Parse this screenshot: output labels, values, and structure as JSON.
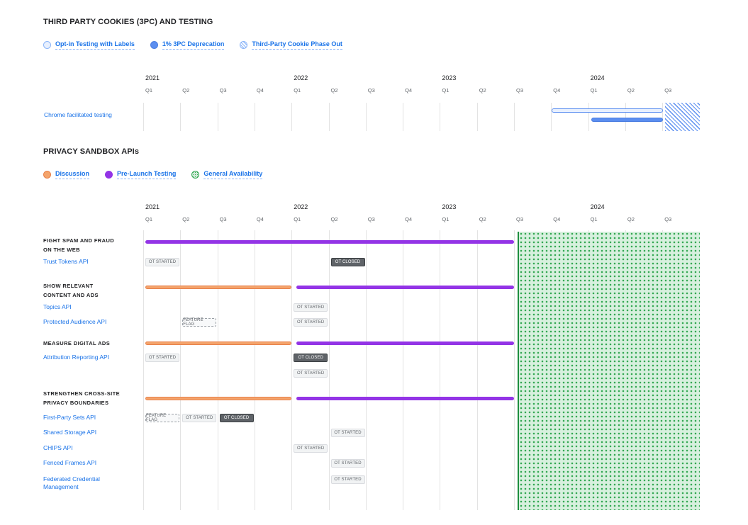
{
  "section1": {
    "title": "THIRD PARTY COOKIES (3PC) AND TESTING",
    "legend": [
      {
        "label": "Opt-in Testing with Labels",
        "color": "#d2e3fc",
        "style": "outline"
      },
      {
        "label": "1% 3PC Deprecation",
        "color": "#5b8ef0",
        "style": "solid"
      },
      {
        "label": "Third-Party Cookie Phase Out",
        "color": "#8ab4f8",
        "style": "hatched"
      }
    ],
    "rows": [
      {
        "label": "Chrome facilitated testing"
      }
    ],
    "bars": [
      {
        "type": "Opt-in Testing with Labels",
        "start": "2023 Q4",
        "end": "2024 Q3"
      },
      {
        "type": "1% 3PC Deprecation",
        "start": "2024 Q1",
        "end": "2024 Q3"
      },
      {
        "type": "Third-Party Cookie Phase Out",
        "start": "2024 Q3",
        "end": "ongoing"
      }
    ]
  },
  "section2": {
    "title": "PRIVACY SANDBOX APIs",
    "legend": [
      {
        "label": "Discussion",
        "color": "#f4a46c"
      },
      {
        "label": "Pre-Launch Testing",
        "color": "#9334e6"
      },
      {
        "label": "General Availability",
        "color": "#a8dab5"
      }
    ],
    "general_availability_start": "2023 Q3",
    "groups": [
      {
        "title": "FIGHT SPAM AND FRAUD ON THE WEB",
        "discussion": null,
        "testing": [
          "2021 Q1",
          "2023 Q3"
        ],
        "apis": [
          {
            "label": "Trust Tokens API",
            "chips": [
              {
                "text": "OT STARTED",
                "kind": "started",
                "at": "2021 Q1"
              },
              {
                "text": "OT CLOSED",
                "kind": "closed",
                "at": "2022 Q2"
              }
            ]
          }
        ]
      },
      {
        "title": "SHOW RELEVANT CONTENT AND ADS",
        "discussion": [
          "2021 Q1",
          "2022 Q1"
        ],
        "testing": [
          "2022 Q1",
          "2023 Q3"
        ],
        "apis": [
          {
            "label": "Topics API",
            "chips": [
              {
                "text": "OT STARTED",
                "kind": "started",
                "at": "2022 Q1"
              }
            ]
          },
          {
            "label": "Protected Audience API",
            "chips": [
              {
                "text": "FEATURE FLAG",
                "kind": "flag",
                "at": "2021 Q2"
              },
              {
                "text": "OT STARTED",
                "kind": "started",
                "at": "2022 Q1"
              }
            ]
          }
        ]
      },
      {
        "title": "MEASURE DIGITAL ADS",
        "discussion": [
          "2021 Q1",
          "2022 Q1"
        ],
        "testing": [
          "2022 Q1",
          "2023 Q3"
        ],
        "apis": [
          {
            "label": "Attribution Reporting API",
            "chips": [
              {
                "text": "OT STARTED",
                "kind": "started",
                "at": "2021 Q1"
              },
              {
                "text": "OT CLOSED",
                "kind": "closed",
                "at": "2022 Q1"
              }
            ]
          },
          {
            "label": "",
            "chips": [
              {
                "text": "OT STARTED",
                "kind": "started",
                "at": "2022 Q1"
              }
            ]
          }
        ]
      },
      {
        "title": "STRENGTHEN CROSS-SITE PRIVACY BOUNDARIES",
        "discussion": [
          "2021 Q1",
          "2022 Q1"
        ],
        "testing": [
          "2022 Q1",
          "2023 Q3"
        ],
        "apis": [
          {
            "label": "First-Party Sets API",
            "chips": [
              {
                "text": "FEATURE FLAG",
                "kind": "flag",
                "at": "2021 Q1"
              },
              {
                "text": "OT STARTED",
                "kind": "started",
                "at": "2021 Q2"
              },
              {
                "text": "OT CLOSED",
                "kind": "closed",
                "at": "2021 Q3"
              }
            ]
          },
          {
            "label": "Shared Storage API",
            "chips": [
              {
                "text": "OT STARTED",
                "kind": "started",
                "at": "2022 Q2"
              }
            ]
          },
          {
            "label": "CHIPS API",
            "chips": [
              {
                "text": "OT STARTED",
                "kind": "started",
                "at": "2022 Q1"
              }
            ]
          },
          {
            "label": "Fenced Frames API",
            "chips": [
              {
                "text": "OT STARTED",
                "kind": "started",
                "at": "2022 Q2"
              }
            ]
          },
          {
            "label": "Federated Credential Management",
            "chips": [
              {
                "text": "OT STARTED",
                "kind": "started",
                "at": "2022 Q2"
              }
            ]
          }
        ]
      }
    ]
  },
  "timeline": {
    "years": [
      "2021",
      "2022",
      "2023",
      "2024"
    ],
    "quarters": [
      "Q1",
      "Q2",
      "Q3",
      "Q4",
      "Q1",
      "Q2",
      "Q3",
      "Q4",
      "Q1",
      "Q2",
      "Q3",
      "Q4",
      "Q1",
      "Q2",
      "Q3"
    ]
  }
}
